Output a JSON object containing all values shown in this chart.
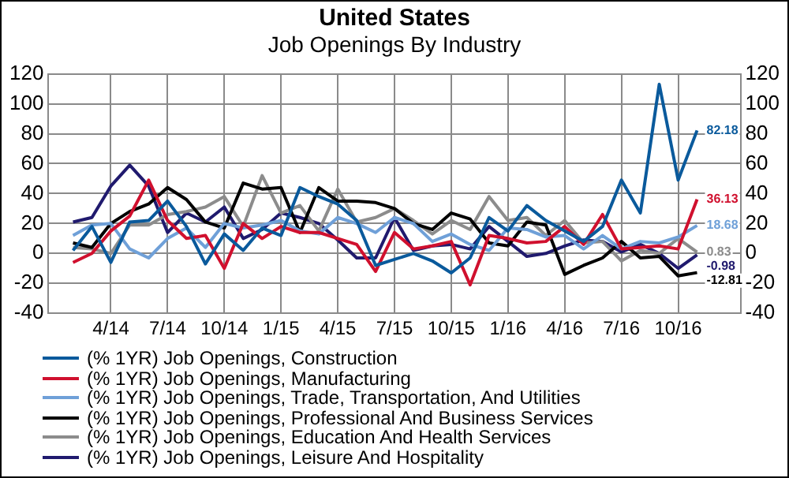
{
  "chart_data": {
    "type": "line",
    "title": "United States",
    "subtitle": "Job Openings By Industry",
    "categories": [
      null,
      null,
      "4/14",
      null,
      null,
      "7/14",
      null,
      null,
      "10/14",
      null,
      null,
      "1/15",
      null,
      null,
      "4/15",
      null,
      null,
      "7/15",
      null,
      null,
      "10/15",
      null,
      null,
      "1/16",
      null,
      null,
      "4/16",
      null,
      null,
      "7/16",
      null,
      null,
      "10/16",
      null
    ],
    "series": [
      {
        "name": "(% 1YR) Job Openings, Construction",
        "color": "#0a5a9c",
        "values": [
          2,
          18,
          -6,
          21,
          22,
          35,
          18,
          -7,
          13,
          2,
          17,
          12,
          44,
          38,
          33,
          22,
          -8,
          -4,
          0,
          -5,
          -13,
          -3,
          24,
          15,
          32,
          22,
          15,
          8,
          18,
          49,
          27,
          113,
          49,
          82.18
        ],
        "value_labels": [
          null,
          null,
          null,
          null,
          null,
          null,
          null,
          null,
          null,
          null,
          null,
          null,
          null,
          null,
          null,
          null,
          null,
          null,
          null,
          null,
          null,
          null,
          null,
          null,
          null,
          null,
          null,
          null,
          null,
          null,
          null,
          null,
          null,
          "82.18"
        ]
      },
      {
        "name": "(% 1YR) Job Openings, Manufacturing",
        "color": "#d0102e",
        "values": [
          -6,
          0,
          15,
          25,
          49,
          22,
          10,
          12,
          -10,
          20,
          10,
          18,
          14,
          14,
          10,
          6,
          -12,
          14,
          3,
          5,
          8,
          -21,
          12,
          10,
          7,
          8,
          18,
          6,
          26,
          3,
          4,
          5,
          3,
          36.13
        ],
        "value_labels": [
          null,
          null,
          null,
          null,
          null,
          null,
          null,
          null,
          null,
          null,
          null,
          null,
          null,
          null,
          null,
          null,
          null,
          null,
          null,
          null,
          null,
          null,
          null,
          null,
          null,
          null,
          null,
          null,
          null,
          null,
          null,
          null,
          null,
          "36.13"
        ]
      },
      {
        "name": "(% 1YR) Job Openings, Trade, Transportation, And Utilities",
        "color": "#6fa0d8",
        "values": [
          12,
          19,
          20,
          3,
          -3,
          10,
          17,
          4,
          20,
          17,
          19,
          22,
          15,
          13,
          24,
          20,
          14,
          24,
          20,
          8,
          13,
          6,
          2,
          17,
          16,
          11,
          12,
          3,
          12,
          3,
          8,
          7,
          11,
          18.68
        ],
        "value_labels": [
          null,
          null,
          null,
          null,
          null,
          null,
          null,
          null,
          null,
          null,
          null,
          null,
          null,
          null,
          null,
          null,
          null,
          null,
          null,
          null,
          null,
          null,
          null,
          null,
          null,
          null,
          null,
          null,
          null,
          null,
          null,
          null,
          null,
          "18.68"
        ]
      },
      {
        "name": "(% 1YR) Job Openings, Professional And Business Services",
        "color": "#000000",
        "values": [
          7,
          4,
          20,
          28,
          33,
          44,
          36,
          21,
          17,
          47,
          43,
          44,
          14,
          44,
          35,
          35,
          34,
          30,
          20,
          16,
          27,
          23,
          7,
          5,
          21,
          19,
          -14,
          -8,
          -3,
          8,
          -3,
          -2,
          -15,
          -12.81
        ],
        "value_labels": [
          null,
          null,
          null,
          null,
          null,
          null,
          null,
          null,
          null,
          null,
          null,
          null,
          null,
          null,
          null,
          null,
          null,
          null,
          null,
          null,
          null,
          null,
          null,
          null,
          null,
          null,
          null,
          null,
          null,
          null,
          null,
          null,
          null,
          "-12.81"
        ]
      },
      {
        "name": "(% 1YR) Job Openings, Education And Health Services",
        "color": "#8c8c8c",
        "values": [
          4,
          3,
          0,
          19,
          19,
          26,
          28,
          31,
          38,
          18,
          52,
          27,
          32,
          15,
          43,
          21,
          24,
          30,
          22,
          13,
          22,
          16,
          38,
          22,
          24,
          12,
          22,
          7,
          8,
          -5,
          2,
          0,
          10,
          0.83
        ],
        "value_labels": [
          null,
          null,
          null,
          null,
          null,
          null,
          null,
          null,
          null,
          null,
          null,
          null,
          null,
          null,
          null,
          null,
          null,
          null,
          null,
          null,
          null,
          null,
          null,
          null,
          null,
          null,
          null,
          null,
          null,
          null,
          null,
          null,
          null,
          "0.83"
        ]
      },
      {
        "name": "(% 1YR) Job Openings, Leisure And Hospitality",
        "color": "#201a6e",
        "values": [
          21,
          24,
          45,
          59,
          45,
          14,
          27,
          21,
          31,
          10,
          16,
          27,
          24,
          20,
          9,
          -3,
          -3,
          24,
          2,
          5,
          6,
          3,
          18,
          8,
          -2,
          0,
          5,
          9,
          8,
          1,
          6,
          0,
          -10,
          -0.98
        ],
        "value_labels": [
          null,
          null,
          null,
          null,
          null,
          null,
          null,
          null,
          null,
          null,
          null,
          null,
          null,
          null,
          null,
          null,
          null,
          null,
          null,
          null,
          null,
          null,
          null,
          null,
          null,
          null,
          null,
          null,
          null,
          null,
          null,
          null,
          null,
          "-0.98"
        ]
      }
    ],
    "ylim": [
      -40,
      120
    ],
    "yticks": [
      -40,
      -20,
      0,
      20,
      40,
      60,
      80,
      100,
      120
    ],
    "y2lim": [
      -40,
      120
    ],
    "y2ticks": [
      -40,
      -20,
      0,
      20,
      40,
      60,
      80,
      100,
      120
    ],
    "grid": true,
    "legend": "bottom",
    "marker": "none",
    "line_style": "solid"
  }
}
